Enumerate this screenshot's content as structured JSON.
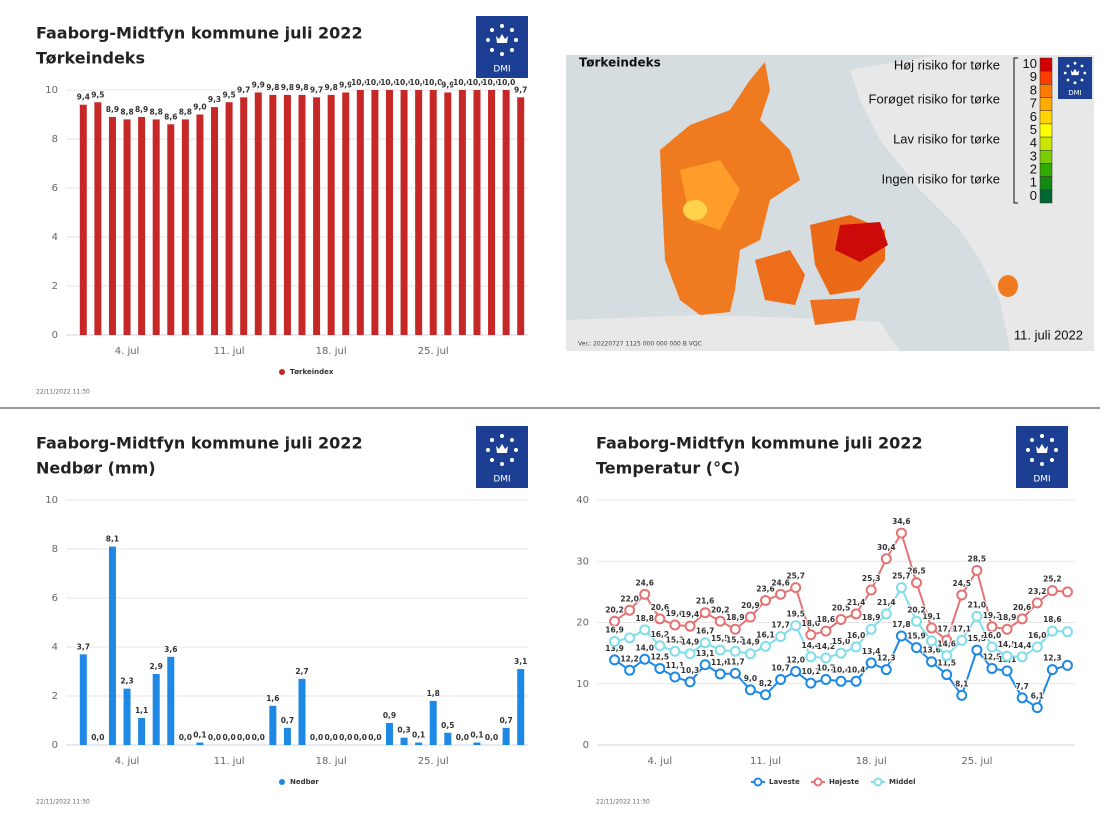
{
  "chart_data": [
    {
      "type": "bar",
      "title": "Faaborg-Midtfyn kommune juli 2022",
      "subtitle": "Tørkeindeks",
      "logo": "DMI",
      "footer": "22/11/2022 11:30",
      "categories": [
        null,
        null,
        null,
        "4. jul",
        null,
        null,
        null,
        null,
        null,
        null,
        "11. jul",
        null,
        null,
        null,
        null,
        null,
        null,
        "18. jul",
        null,
        null,
        null,
        null,
        null,
        null,
        "25. jul",
        null,
        null,
        null,
        null,
        null,
        null
      ],
      "series": [
        {
          "name": "Tørkeindex",
          "color": "#c62828",
          "values": [
            9.4,
            9.5,
            8.9,
            8.8,
            8.9,
            8.8,
            8.6,
            8.8,
            9.0,
            9.3,
            9.5,
            9.7,
            9.9,
            9.8,
            9.8,
            9.8,
            9.7,
            9.8,
            9.9,
            10.0,
            10.0,
            10.0,
            10.0,
            10.0,
            10.0,
            9.9,
            10.0,
            10.0,
            10.0,
            10.0,
            9.7
          ],
          "value_labels": [
            "9,4",
            "9,5",
            "8,9",
            "8,8",
            "8,9",
            "8,8",
            "8,6",
            "8,8",
            "9,0",
            "9,3",
            "9,5",
            "9,7",
            "9,9",
            "9,8",
            "9,8",
            "9,8",
            "9,7",
            "9,8",
            "9,9",
            "10,0",
            "10,0",
            "10,0",
            "10,0",
            "10,0",
            "10,0",
            "9,9",
            "10,0",
            "10,0",
            "10,0",
            "10,0",
            "9,7"
          ]
        }
      ],
      "ylim": [
        0,
        10
      ],
      "yticks": [
        0,
        2,
        4,
        6,
        8,
        10
      ],
      "grid": true
    },
    {
      "type": "bar",
      "title": "Faaborg-Midtfyn kommune juli 2022",
      "subtitle": "Nedbør (mm)",
      "logo": "DMI",
      "footer": "22/11/2022 11:30",
      "categories": [
        null,
        null,
        null,
        "4. jul",
        null,
        null,
        null,
        null,
        null,
        null,
        "11. jul",
        null,
        null,
        null,
        null,
        null,
        null,
        "18. jul",
        null,
        null,
        null,
        null,
        null,
        null,
        "25. jul",
        null,
        null,
        null,
        null,
        null,
        null
      ],
      "series": [
        {
          "name": "Nedbør",
          "color": "#1e88e5",
          "values": [
            3.7,
            0.0,
            8.1,
            2.3,
            1.1,
            2.9,
            3.6,
            0.0,
            0.1,
            0.0,
            0.0,
            0.0,
            0.0,
            1.6,
            0.7,
            2.7,
            0.0,
            0.0,
            0.0,
            0.0,
            0.0,
            0.9,
            0.3,
            0.1,
            1.8,
            0.5,
            0.0,
            0.1,
            0.0,
            0.7,
            3.1
          ],
          "value_labels": [
            "3,7",
            "0,0",
            "8,1",
            "2,3",
            "1,1",
            "2,9",
            "3,6",
            "0,0",
            "0,1",
            "0,0",
            "0,0",
            "0,0",
            "0,0",
            "1,6",
            "0,7",
            "2,7",
            "0,0",
            "0,0",
            "0,0",
            "0,0",
            "0,0",
            "0,9",
            "0,3",
            "0,1",
            "1,8",
            "0,5",
            "0,0",
            "0,1",
            "0,0",
            "0,7",
            "3,1"
          ]
        }
      ],
      "ylim": [
        0,
        10
      ],
      "yticks": [
        0,
        2,
        4,
        6,
        8,
        10
      ],
      "grid": true
    },
    {
      "type": "line",
      "title": "Faaborg-Midtfyn kommune juli 2022",
      "subtitle": "Temperatur (°C)",
      "logo": "DMI",
      "footer": "22/11/2022 11:30",
      "categories": [
        null,
        null,
        null,
        "4. jul",
        null,
        null,
        null,
        null,
        null,
        null,
        "11. jul",
        null,
        null,
        null,
        null,
        null,
        null,
        "18. jul",
        null,
        null,
        null,
        null,
        null,
        null,
        "25. jul",
        null,
        null,
        null,
        null,
        null,
        null
      ],
      "series": [
        {
          "name": "Laveste",
          "color": "#1e88e5",
          "values": [
            13.9,
            12.2,
            14.0,
            12.5,
            11.1,
            10.3,
            13.1,
            11.6,
            11.7,
            9.0,
            8.2,
            10.7,
            12.0,
            10.1,
            10.7,
            10.4,
            10.4,
            13.4,
            12.3,
            17.8,
            15.9,
            13.6,
            11.5,
            8.1,
            15.5,
            12.5,
            12.1,
            7.7,
            6.1,
            12.3,
            13.0
          ],
          "value_labels": [
            "13,9",
            "12,2",
            "14,0",
            "12,5",
            "11,1",
            "10,3",
            "13,1",
            "11,6",
            "11,7",
            "9,0",
            "8,2",
            "10,7",
            "12,0",
            "10,1",
            "10,7",
            "10,4",
            "10,4",
            "13,4",
            "12,3",
            "17,8",
            "15,9",
            "13,6",
            "11,5",
            "8,1",
            "15,5",
            "12,5",
            "12,1",
            "7,7",
            "6,1",
            "12,3",
            null
          ]
        },
        {
          "name": "Højeste",
          "color": "#e57373",
          "values": [
            20.2,
            22.0,
            24.6,
            20.6,
            19.6,
            19.4,
            21.6,
            20.2,
            18.9,
            20.9,
            23.6,
            24.6,
            25.7,
            18.0,
            18.6,
            20.5,
            21.4,
            25.3,
            30.4,
            34.6,
            26.5,
            19.1,
            17.1,
            24.5,
            28.5,
            19.3,
            18.9,
            20.6,
            23.2,
            25.2,
            25.0
          ],
          "value_labels": [
            "20,2",
            "22,0",
            "24,6",
            "20,6",
            "19,6",
            "19,4",
            "21,6",
            "20,2",
            "18,9",
            "20,9",
            "23,6",
            "24,6",
            "25,7",
            "18,0",
            "18,6",
            "20,5",
            "21,4",
            "25,3",
            "30,4",
            "34,6",
            "26,5",
            "19,1",
            "17,1",
            "24,5",
            "28,5",
            "19,3",
            "18,9",
            "20,6",
            "23,2",
            "25,2",
            null
          ]
        },
        {
          "name": "Middel",
          "color": "#80deea",
          "values": [
            16.9,
            17.5,
            18.8,
            16.2,
            15.3,
            14.9,
            16.7,
            15.5,
            15.3,
            14.9,
            16.1,
            17.7,
            19.5,
            14.4,
            14.2,
            15.0,
            16.0,
            18.9,
            21.4,
            25.7,
            20.2,
            17.0,
            14.6,
            17.1,
            21.0,
            16.0,
            14.5,
            14.4,
            16.0,
            18.6,
            18.5
          ],
          "value_labels": [
            "16,9",
            null,
            "18,8",
            "16,2",
            "15,3",
            "14,9",
            "16,7",
            "15,5",
            "15,3",
            "14,9",
            "16,1",
            "17,7",
            "19,5",
            "14,4",
            "14,2",
            "15,0",
            "16,0",
            "18,9",
            "21,4",
            "25,7",
            "20,2",
            null,
            "14,6",
            "17,1",
            "21,0",
            "16,0",
            "14,5",
            "14,4",
            "16,0",
            "18,6",
            null
          ]
        }
      ],
      "ylim": [
        0,
        40
      ],
      "yticks": [
        0,
        10,
        20,
        30,
        40
      ],
      "grid": true
    }
  ],
  "map": {
    "title": "Tørkeindeks",
    "logo": "DMI",
    "date": "11. juli 2022",
    "version": "Ver.: 20220727 1125 000 000 000 B VQC",
    "risk_labels": [
      "Høj risiko for tørke",
      "Forøget risiko for tørke",
      "Lav risiko for tørke",
      "Ingen risiko for tørke"
    ],
    "scale": [
      10,
      9,
      8,
      7,
      6,
      5,
      4,
      3,
      2,
      1,
      0
    ],
    "scale_colors": [
      "#d40000",
      "#ff3c00",
      "#ff7a00",
      "#ffab00",
      "#ffd400",
      "#ffff00",
      "#c8e600",
      "#7ccc00",
      "#33aa00",
      "#128a10",
      "#006633"
    ]
  }
}
